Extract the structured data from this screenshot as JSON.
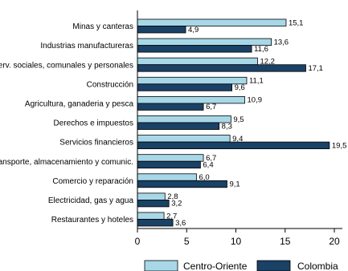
{
  "chart_data": {
    "type": "bar",
    "orientation": "horizontal",
    "categories": [
      "Minas y canteras",
      "Industrias manufactureras",
      "Serv. sociales, comunales y personales",
      "Construcción",
      "Agricultura, ganaderia y pesca",
      "Derechos e impuestos",
      "Servicios financieros",
      "Transporte, almacenamiento y comunic.",
      "Comercio y reparación",
      "Electricidad, gas y agua",
      "Restaurantes y hoteles"
    ],
    "series": [
      {
        "name": "Centro-Oriente",
        "color": "#a8d8e8",
        "values": [
          15.1,
          13.6,
          12.2,
          11.1,
          10.9,
          9.5,
          9.4,
          6.7,
          6.0,
          2.8,
          2.7
        ],
        "labels": [
          "15,1",
          "13,6",
          "12,2",
          "11,1",
          "10,9",
          "9,5",
          "9,4",
          "6,7",
          "6,0",
          "2,8",
          "2,7"
        ]
      },
      {
        "name": "Colombia",
        "color": "#1a4166",
        "values": [
          4.9,
          11.6,
          17.1,
          9.6,
          6.7,
          8.3,
          19.5,
          6.4,
          9.1,
          3.2,
          3.6
        ],
        "labels": [
          "4,9",
          "11,6",
          "17,1",
          "9,6",
          "6,7",
          "8,3",
          "19,5",
          "6,4",
          "9,1",
          "3,2",
          "3,6"
        ]
      }
    ],
    "xlim": [
      0,
      21
    ],
    "xticks": [
      "0",
      "5",
      "10",
      "15",
      "20"
    ],
    "grid": false,
    "legend_position": "bottom"
  }
}
